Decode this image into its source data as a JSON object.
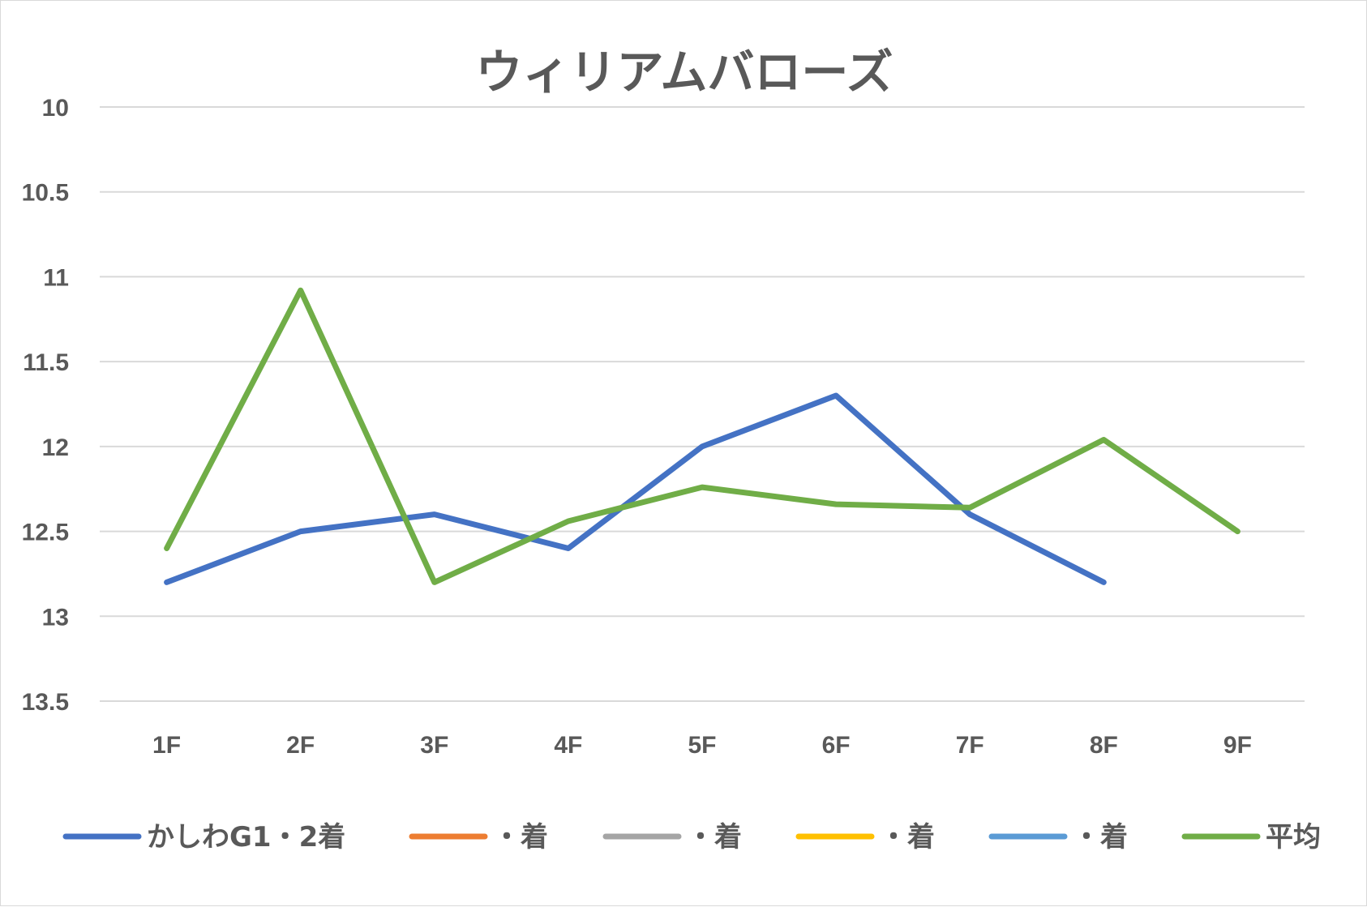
{
  "chart_data": {
    "type": "line",
    "title": "ウィリアムバローズ",
    "categories": [
      "1F",
      "2F",
      "3F",
      "4F",
      "5F",
      "6F",
      "7F",
      "8F",
      "9F"
    ],
    "y_axis": {
      "reversed": true,
      "ylim": [
        10,
        13.5
      ],
      "ticks": [
        10,
        10.5,
        11,
        11.5,
        12,
        12.5,
        13,
        13.5
      ],
      "tick_labels": [
        "10",
        "10.5",
        "11",
        "11.5",
        "12",
        "12.5",
        "13",
        "13.5"
      ]
    },
    "grid": true,
    "legend_position": "bottom",
    "series": [
      {
        "name": "かしわG1・2着",
        "color": "#4472C4",
        "values": [
          12.8,
          12.5,
          12.4,
          12.6,
          12.0,
          11.7,
          12.4,
          12.8,
          null
        ]
      },
      {
        "name": "・着",
        "color": "#ED7D31",
        "values": [
          null,
          null,
          null,
          null,
          null,
          null,
          null,
          null,
          null
        ]
      },
      {
        "name": "・着",
        "color": "#A5A5A5",
        "values": [
          null,
          null,
          null,
          null,
          null,
          null,
          null,
          null,
          null
        ]
      },
      {
        "name": "・着",
        "color": "#FFC000",
        "values": [
          null,
          null,
          null,
          null,
          null,
          null,
          null,
          null,
          null
        ]
      },
      {
        "name": "・着",
        "color": "#5B9BD5",
        "values": [
          null,
          null,
          null,
          null,
          null,
          null,
          null,
          null,
          null
        ]
      },
      {
        "name": "平均",
        "color": "#70AD47",
        "values": [
          12.6,
          11.08,
          12.8,
          12.44,
          12.24,
          12.34,
          12.36,
          11.96,
          12.5
        ]
      }
    ]
  }
}
